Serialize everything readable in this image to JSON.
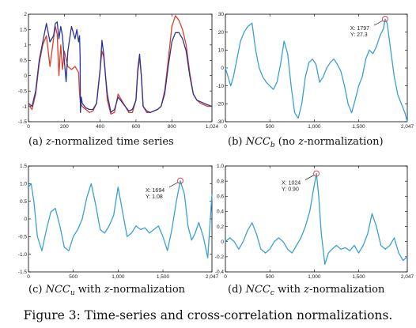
{
  "figure_caption": "Figure 3: Time-series and cross-correlation normalizations.",
  "colors": {
    "blue_series": "#2a3596",
    "red_series": "#d9402a",
    "ncc_line": "#3aa0d5",
    "marker": "#d94a4a"
  },
  "chart_data": [
    {
      "id": "a",
      "type": "line",
      "caption": "(a) z-normalized time series",
      "xlim": [
        0,
        1024
      ],
      "ylim": [
        -1.5,
        2
      ],
      "xticks": [
        0,
        200,
        400,
        600,
        800,
        1024
      ],
      "xticklabels": [
        "0",
        "200",
        "400",
        "600",
        "800",
        "1,024"
      ],
      "yticks": [
        -1.5,
        -1,
        -0.5,
        0,
        0.5,
        1,
        1.5,
        2
      ],
      "yticklabels": [
        "-1.5",
        "-1",
        "-0.5",
        "0",
        "0.5",
        "1",
        "1.5",
        "2"
      ],
      "series": [
        {
          "color": "#d9402a",
          "x": [
            0,
            20,
            40,
            60,
            80,
            100,
            120,
            140,
            150,
            160,
            170,
            180,
            190,
            200,
            220,
            240,
            260,
            280,
            285,
            290,
            300,
            320,
            340,
            360,
            380,
            400,
            410,
            420,
            430,
            440,
            460,
            480,
            500,
            520,
            540,
            560,
            580,
            600,
            610,
            620,
            630,
            640,
            660,
            680,
            700,
            720,
            740,
            760,
            780,
            800,
            820,
            840,
            860,
            880,
            900,
            920,
            940,
            960,
            980,
            1000,
            1024
          ],
          "y": [
            -0.95,
            -1.1,
            -0.6,
            0.4,
            1.0,
            1.3,
            0.3,
            1.2,
            1.6,
            1.35,
            0.0,
            1.0,
            0.2,
            0.8,
            0.3,
            0.2,
            0.3,
            0.1,
            -0.6,
            -0.9,
            -1.0,
            -1.1,
            -1.2,
            -1.15,
            -0.9,
            0.2,
            0.8,
            0.6,
            0.0,
            -0.8,
            -1.25,
            -1.2,
            -0.6,
            -0.8,
            -1.0,
            -1.2,
            -1.2,
            -0.8,
            0.1,
            0.6,
            0.0,
            -1.0,
            -1.2,
            -1.2,
            -1.15,
            -1.1,
            -1.0,
            -0.5,
            0.5,
            1.6,
            1.95,
            1.8,
            1.5,
            1.0,
            0.1,
            -0.6,
            -0.8,
            -0.9,
            -0.95,
            -1.0,
            -1.0
          ]
        },
        {
          "color": "#2a3596",
          "x": [
            0,
            20,
            40,
            60,
            80,
            100,
            120,
            140,
            150,
            160,
            170,
            180,
            190,
            200,
            210,
            220,
            240,
            260,
            270,
            280,
            285,
            288,
            290,
            295,
            300,
            320,
            340,
            360,
            380,
            400,
            410,
            420,
            430,
            440,
            460,
            480,
            500,
            520,
            540,
            560,
            580,
            600,
            610,
            620,
            630,
            640,
            660,
            680,
            700,
            720,
            740,
            760,
            780,
            800,
            820,
            840,
            860,
            880,
            900,
            920,
            940,
            960,
            980,
            1000,
            1024
          ],
          "y": [
            -0.9,
            -1.0,
            -0.5,
            0.5,
            1.1,
            1.7,
            1.1,
            1.3,
            1.7,
            1.75,
            1.2,
            1.6,
            1.3,
            0.5,
            -0.2,
            0.8,
            1.6,
            1.2,
            1.5,
            1.1,
            1.3,
            0.6,
            -1.2,
            -0.7,
            -0.9,
            -1.05,
            -1.1,
            -1.1,
            -0.9,
            0.2,
            1.15,
            0.7,
            0.0,
            -0.6,
            -1.2,
            -1.1,
            -0.7,
            -0.85,
            -1.0,
            -1.15,
            -1.1,
            -0.8,
            0.2,
            0.7,
            0.0,
            -1.0,
            -1.15,
            -1.2,
            -1.15,
            -1.1,
            -1.0,
            -0.6,
            0.3,
            1.1,
            1.4,
            1.4,
            1.2,
            0.8,
            0.0,
            -0.6,
            -0.8,
            -0.85,
            -0.9,
            -0.95,
            -1.0
          ]
        }
      ]
    },
    {
      "id": "b",
      "type": "line",
      "caption": "(b) NCC_b (no z-normalization)",
      "xlim": [
        0,
        2047
      ],
      "ylim": [
        -30,
        30
      ],
      "xticks": [
        0,
        500,
        1000,
        1500,
        2047
      ],
      "xticklabels": [
        "0",
        "500",
        "1,000",
        "1,500",
        "2,047"
      ],
      "yticks": [
        -30,
        -20,
        -10,
        0,
        10,
        20,
        30
      ],
      "yticklabels": [
        "-30",
        "-20",
        "-10",
        "0",
        "10",
        "20",
        "30"
      ],
      "annotation": {
        "x": 1797,
        "y": 27.3,
        "text_x": "X: 1797",
        "text_y": "Y: 27.3"
      },
      "series": [
        {
          "color": "#3aa0d5",
          "x": [
            0,
            30,
            60,
            90,
            130,
            170,
            210,
            250,
            300,
            340,
            380,
            420,
            460,
            500,
            540,
            580,
            620,
            660,
            700,
            740,
            780,
            820,
            860,
            900,
            940,
            980,
            1020,
            1060,
            1100,
            1140,
            1180,
            1220,
            1260,
            1300,
            1340,
            1380,
            1420,
            1460,
            1500,
            1540,
            1580,
            1620,
            1660,
            1700,
            1740,
            1780,
            1797,
            1820,
            1860,
            1900,
            1940,
            1980,
            2020,
            2047
          ],
          "y": [
            0,
            -5,
            -10,
            -5,
            5,
            15,
            20,
            23,
            25,
            10,
            0,
            -5,
            -8,
            -10,
            -12,
            -8,
            2,
            15,
            8,
            -10,
            -25,
            -28,
            -20,
            -5,
            3,
            5,
            2,
            -8,
            -5,
            0,
            3,
            5,
            2,
            -2,
            -10,
            -20,
            -25,
            -18,
            -10,
            -5,
            5,
            10,
            8,
            12,
            18,
            22,
            27.3,
            25,
            10,
            -5,
            -15,
            -20,
            -25,
            -30
          ]
        }
      ]
    },
    {
      "id": "c",
      "type": "line",
      "caption": "(c) NCC_u with z-normalization",
      "xlim": [
        0,
        2047
      ],
      "ylim": [
        -1.5,
        1.5
      ],
      "xticks": [
        0,
        500,
        1000,
        1500,
        2047
      ],
      "xticklabels": [
        "0",
        "500",
        "1,000",
        "1,500",
        "2,047"
      ],
      "yticks": [
        -1.5,
        -1,
        -0.5,
        0,
        0.5,
        1,
        1.5
      ],
      "yticklabels": [
        "-1.5",
        "-1.0",
        "-0.5",
        "0",
        "0.5",
        "1.0",
        "1.5"
      ],
      "annotation": {
        "x": 1694,
        "y": 1.08,
        "text_x": "X: 1694",
        "text_y": "Y: 1.08"
      },
      "series": [
        {
          "color": "#3aa0d5",
          "x": [
            0,
            30,
            60,
            100,
            150,
            200,
            250,
            300,
            350,
            400,
            450,
            500,
            550,
            600,
            650,
            700,
            750,
            800,
            850,
            900,
            950,
            1000,
            1050,
            1100,
            1150,
            1200,
            1250,
            1300,
            1350,
            1400,
            1450,
            1500,
            1550,
            1600,
            1650,
            1694,
            1740,
            1780,
            1820,
            1860,
            1900,
            1950,
            2000,
            2047
          ],
          "y": [
            0.9,
            1.0,
            0.5,
            -0.5,
            -0.9,
            -0.3,
            0.2,
            0.3,
            -0.2,
            -0.8,
            -0.9,
            -0.5,
            -0.3,
            0.0,
            0.6,
            1.0,
            0.4,
            -0.3,
            -0.4,
            -0.2,
            0.1,
            0.9,
            0.2,
            -0.5,
            -0.4,
            -0.2,
            -0.3,
            -0.25,
            -0.4,
            -0.3,
            -0.2,
            -0.5,
            -0.9,
            -0.3,
            0.5,
            1.08,
            0.7,
            -0.2,
            -0.6,
            -0.4,
            -0.1,
            -0.5,
            -1.1,
            0.7
          ]
        }
      ]
    },
    {
      "id": "d",
      "type": "line",
      "caption": "(d) NCC_c with z-normalization",
      "xlim": [
        0,
        2047
      ],
      "ylim": [
        -0.4,
        1
      ],
      "xticks": [
        0,
        500,
        1000,
        1500,
        2047
      ],
      "xticklabels": [
        "0",
        "500",
        "1,000",
        "1,500",
        "2,047"
      ],
      "yticks": [
        -0.4,
        -0.2,
        0,
        0.2,
        0.4,
        0.6,
        0.8,
        1
      ],
      "yticklabels": [
        "-0.4",
        "-0.2",
        "0",
        "0.2",
        "0.4",
        "0.6",
        "0.8",
        "1.0"
      ],
      "annotation": {
        "x": 1024,
        "y": 0.9,
        "text_x": "X: 1024",
        "text_y": "Y: 0.90"
      },
      "series": [
        {
          "color": "#3aa0d5",
          "x": [
            0,
            50,
            100,
            150,
            200,
            250,
            300,
            350,
            400,
            450,
            500,
            550,
            600,
            650,
            700,
            750,
            800,
            850,
            900,
            950,
            1000,
            1024,
            1050,
            1080,
            1120,
            1160,
            1200,
            1250,
            1300,
            1350,
            1400,
            1450,
            1500,
            1550,
            1600,
            1650,
            1700,
            1750,
            1800,
            1850,
            1900,
            1950,
            2000,
            2047
          ],
          "y": [
            0.0,
            0.05,
            0.0,
            -0.1,
            0.0,
            0.15,
            0.25,
            0.1,
            -0.1,
            -0.15,
            -0.1,
            0.0,
            0.05,
            0.0,
            -0.1,
            -0.15,
            -0.05,
            0.05,
            0.2,
            0.4,
            0.75,
            0.9,
            0.6,
            0.1,
            -0.3,
            -0.15,
            -0.1,
            -0.05,
            -0.1,
            -0.08,
            -0.12,
            -0.05,
            -0.15,
            -0.05,
            0.1,
            0.37,
            0.2,
            -0.05,
            -0.1,
            -0.05,
            0.05,
            -0.15,
            -0.25,
            -0.2
          ]
        }
      ]
    }
  ]
}
